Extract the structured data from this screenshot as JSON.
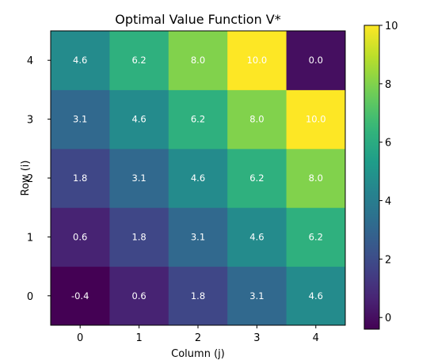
{
  "chart_data": {
    "type": "heatmap",
    "title": "Optimal Value Function V*",
    "xlabel": "Column (j)",
    "ylabel": "Row (i)",
    "x_categories": [
      "0",
      "1",
      "2",
      "3",
      "4"
    ],
    "y_categories": [
      "0",
      "1",
      "2",
      "3",
      "4"
    ],
    "values": [
      [
        -0.4,
        0.6,
        1.8,
        3.1,
        4.6
      ],
      [
        0.6,
        1.8,
        3.1,
        4.6,
        6.2
      ],
      [
        1.8,
        3.1,
        4.6,
        6.2,
        8.0
      ],
      [
        3.1,
        4.6,
        6.2,
        8.0,
        10.0
      ],
      [
        4.6,
        6.2,
        8.0,
        10.0,
        0.0
      ]
    ],
    "cell_labels": [
      [
        "-0.4",
        "0.6",
        "1.8",
        "3.1",
        "4.6"
      ],
      [
        "0.6",
        "1.8",
        "3.1",
        "4.6",
        "6.2"
      ],
      [
        "1.8",
        "3.1",
        "4.6",
        "6.2",
        "8.0"
      ],
      [
        "3.1",
        "4.6",
        "6.2",
        "8.0",
        "10.0"
      ],
      [
        "4.6",
        "6.2",
        "8.0",
        "10.0",
        "0.0"
      ]
    ],
    "colormap": "viridis",
    "color_range": [
      -0.4,
      10.0
    ],
    "colorbar_ticks": [
      "0",
      "2",
      "4",
      "6",
      "8",
      "10"
    ],
    "annotation_color": "#ffffff",
    "y_origin": "bottom"
  }
}
